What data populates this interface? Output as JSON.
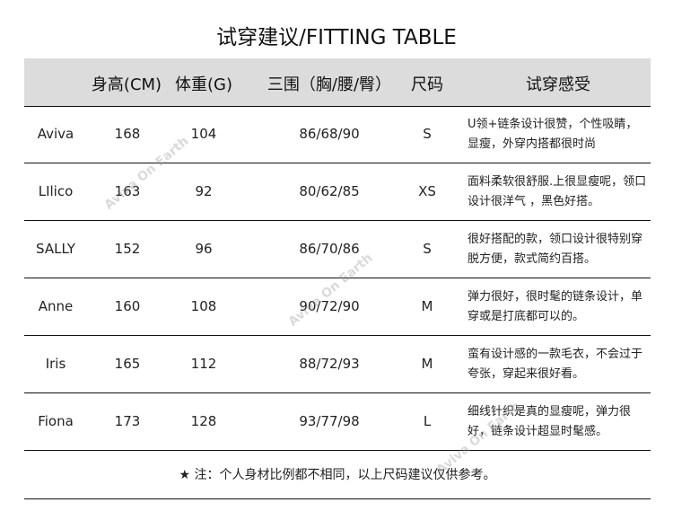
{
  "title": "试穿建议/FITTING TABLE",
  "headers": [
    "身高(CM)",
    "体重(G)",
    "三围（胸/腰/臀）",
    "尺码",
    "试穿感受"
  ],
  "rows": [
    {
      "name": "Aviva",
      "height": "168",
      "weight": "104",
      "measurements": "86/68/90",
      "size": "S",
      "comment": "U领+链条设计很赞，个性吸睛，显瘦，外穿内搭都很时尚"
    },
    {
      "name": "LIlico",
      "height": "163",
      "weight": "92",
      "measurements": "80/62/85",
      "size": "XS",
      "comment": "面料柔软很舒服.上很显瘦呢，领口设计很洋气 ，黑色好搭。"
    },
    {
      "name": "SALLY",
      "height": "152",
      "weight": "96",
      "measurements": "86/70/86",
      "size": "S",
      "comment": "很好搭配的款，领口设计很特别穿脱方便，款式简约百搭。"
    },
    {
      "name": "Anne",
      "height": "160",
      "weight": "108",
      "measurements": "90/72/90",
      "size": "M",
      "comment": "弹力很好，很时髦的链条设计，单穿或是打底都可以的。"
    },
    {
      "name": "Iris",
      "height": "165",
      "weight": "112",
      "measurements": "88/72/93",
      "size": "M",
      "comment": "蛮有设计感的一款毛衣，不会过于夸张，穿起来很好看。"
    },
    {
      "name": "Fiona",
      "height": "173",
      "weight": "128",
      "measurements": "93/77/98",
      "size": "L",
      "comment": "细线针织是真的显瘦呢，弹力很好，链条设计超显时髦感。"
    }
  ],
  "footer": "★ 注：个人身材比例都不相同，以上尺码建议仅供参考。",
  "watermark": "Aviva On Earth"
}
